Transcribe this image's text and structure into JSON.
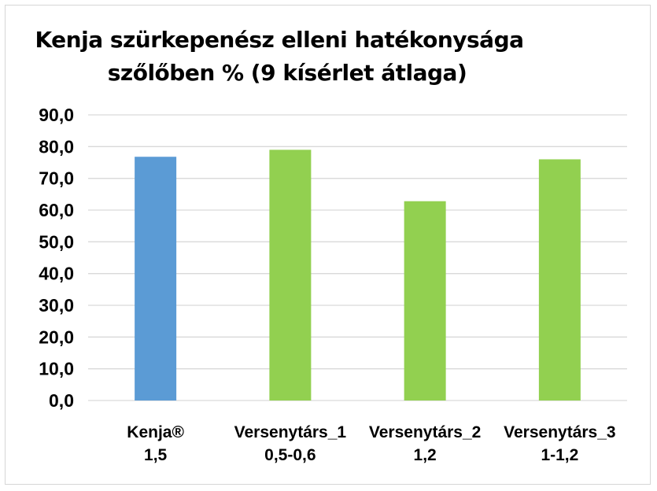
{
  "chart_data": {
    "type": "bar",
    "title_lines": [
      "Kenja szürkepenész elleni hatékonysága",
      "szőlőben % (9 kísérlet átlaga)"
    ],
    "categories": [
      {
        "name": "Kenja®",
        "dose": "1,5"
      },
      {
        "name": "Versenytárs_1",
        "dose": "0,5-0,6"
      },
      {
        "name": "Versenytárs_2",
        "dose": "1,2"
      },
      {
        "name": "Versenytárs_3",
        "dose": "1-1,2"
      }
    ],
    "values": [
      76.8,
      79.0,
      62.8,
      76.0
    ],
    "bar_colors": [
      "#5b9bd5",
      "#92d050",
      "#92d050",
      "#92d050"
    ],
    "ylim": [
      0,
      90
    ],
    "y_ticks": [
      "0,0",
      "10,0",
      "20,0",
      "30,0",
      "40,0",
      "50,0",
      "60,0",
      "70,0",
      "80,0",
      "90,0"
    ],
    "grid": true,
    "gridline_color": "#d9d9d9",
    "legend": "none"
  }
}
